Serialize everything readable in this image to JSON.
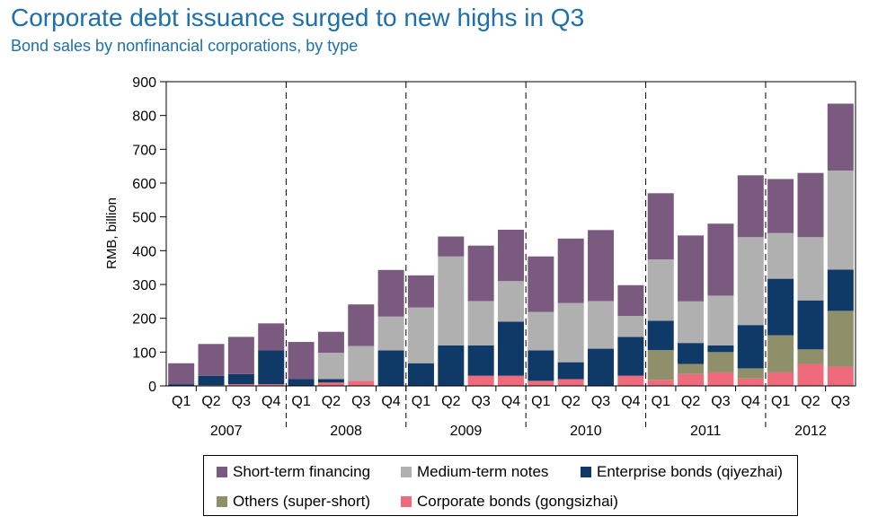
{
  "title": "Corporate debt issuance surged to new highs in Q3",
  "subtitle": "Bond sales by nonfinancial corporations, by type",
  "colors": {
    "title": "#1d6fae",
    "short_term": "#7b5a80",
    "medium_term": "#b0b0b0",
    "enterprise": "#0f3a68",
    "others": "#8f8f6a",
    "corporate": "#ef6b7b"
  },
  "chart_data": {
    "type": "bar",
    "stacked": true,
    "ylabel": "RMB, billion",
    "ylim": [
      0,
      900
    ],
    "yticks": [
      0,
      100,
      200,
      300,
      400,
      500,
      600,
      700,
      800,
      900
    ],
    "categories": [
      "Q1",
      "Q2",
      "Q3",
      "Q4",
      "Q1",
      "Q2",
      "Q3",
      "Q4",
      "Q1",
      "Q2",
      "Q3",
      "Q4",
      "Q1",
      "Q2",
      "Q3",
      "Q4",
      "Q1",
      "Q2",
      "Q3",
      "Q4",
      "Q1",
      "Q2",
      "Q3"
    ],
    "years": [
      "2007",
      "2008",
      "2009",
      "2010",
      "2011",
      "2012"
    ],
    "year_quarter_counts": [
      4,
      4,
      4,
      4,
      4,
      3
    ],
    "series": [
      {
        "name": "Corporate bonds (gongsizhai)",
        "color_key": "corporate",
        "values": [
          0,
          2,
          5,
          5,
          0,
          10,
          15,
          0,
          0,
          0,
          30,
          30,
          15,
          20,
          0,
          30,
          18,
          35,
          40,
          22,
          40,
          65,
          57
        ]
      },
      {
        "name": "Others (super-short)",
        "color_key": "others",
        "values": [
          0,
          0,
          0,
          0,
          0,
          0,
          0,
          0,
          0,
          0,
          0,
          0,
          0,
          0,
          0,
          0,
          88,
          30,
          60,
          30,
          110,
          43,
          165
        ]
      },
      {
        "name": "Enterprise bonds (qiyezhai)",
        "color_key": "enterprise",
        "values": [
          5,
          28,
          30,
          100,
          20,
          10,
          0,
          105,
          67,
          120,
          90,
          160,
          90,
          50,
          110,
          115,
          87,
          62,
          20,
          128,
          167,
          145,
          122
        ]
      },
      {
        "name": "Medium-term notes",
        "color_key": "medium_term",
        "values": [
          0,
          0,
          0,
          0,
          0,
          78,
          103,
          100,
          165,
          263,
          131,
          120,
          114,
          175,
          141,
          62,
          181,
          123,
          147,
          260,
          135,
          187,
          293
        ]
      },
      {
        "name": "Short-term financing",
        "color_key": "short_term",
        "values": [
          62,
          94,
          110,
          80,
          110,
          62,
          123,
          138,
          95,
          59,
          164,
          152,
          164,
          191,
          210,
          91,
          196,
          195,
          213,
          183,
          160,
          190,
          198
        ]
      }
    ],
    "legend_order": [
      "Short-term financing",
      "Medium-term notes",
      "Enterprise bonds (qiyezhai)",
      "Others (super-short)",
      "Corporate bonds (gongsizhai)"
    ],
    "grid": false,
    "legend_position": "bottom"
  }
}
